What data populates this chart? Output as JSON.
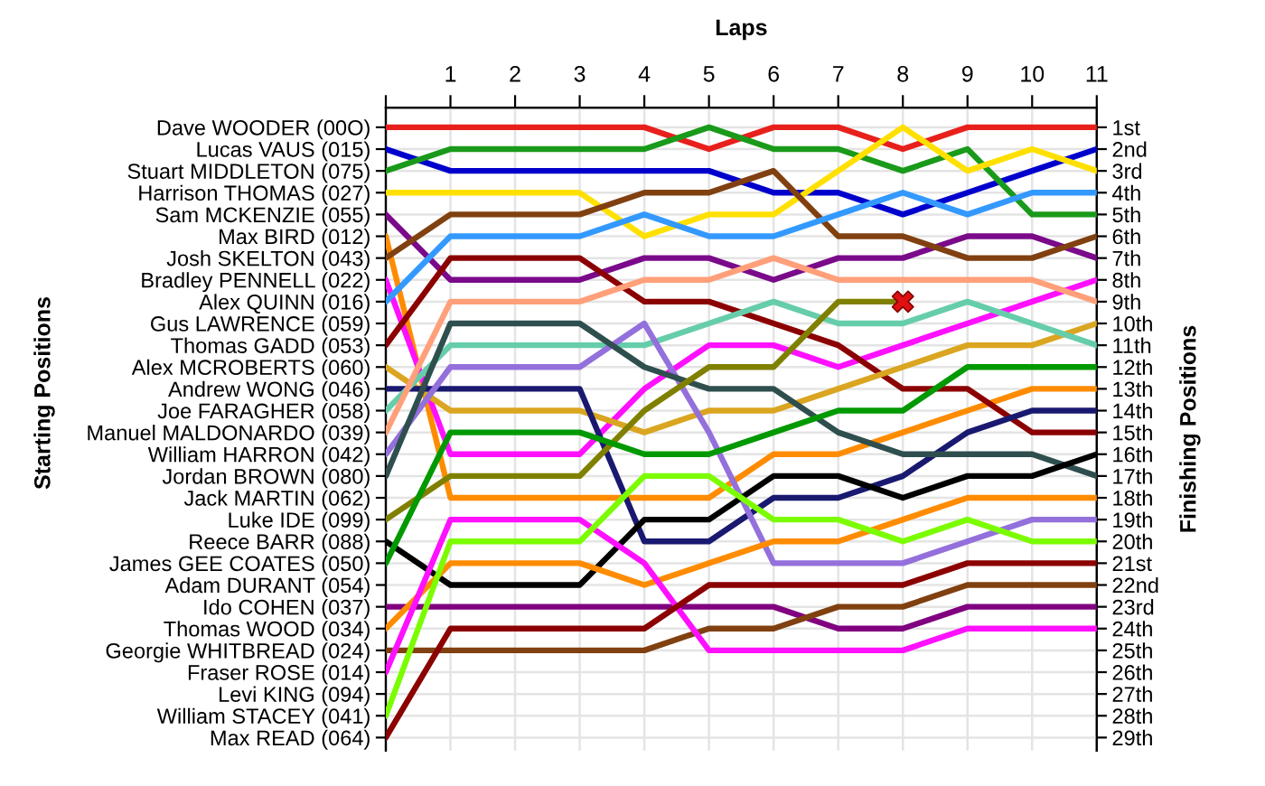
{
  "chart_data": {
    "type": "line",
    "xlabel": "Laps",
    "ylabel": "Finishing Positions",
    "annotations": [
      "Starting Positions"
    ],
    "x": [
      0,
      1,
      2,
      3,
      4,
      5,
      6,
      7,
      8,
      9,
      10,
      11
    ],
    "xlim": [
      0,
      11
    ],
    "xticks": [
      {
        "value": 0,
        "label": null
      },
      1,
      2,
      3,
      4,
      5,
      6,
      7,
      8,
      9,
      10,
      11
    ],
    "y_categories": [
      "Dave WOODER (00O)",
      "Lucas VAUS (015)",
      "Stuart MIDDLETON (075)",
      "Harrison THOMAS (027)",
      "Sam MCKENZIE (055)",
      "Max BIRD (012)",
      "Josh SKELTON (043)",
      "Bradley PENNELL (022)",
      "Alex QUINN (016)",
      "Gus LAWRENCE (059)",
      "Thomas GADD (053)",
      "Alex MCROBERTS (060)",
      "Andrew WONG (046)",
      "Joe FARAGHER (058)",
      "Manuel MALDONARDO (039)",
      "William HARRON (042)",
      "Jordan BROWN (080)",
      "Jack MARTIN (062)",
      "Luke IDE (099)",
      "Reece BARR (088)",
      "James GEE COATES (050)",
      "Adam DURANT (054)",
      "Ido COHEN (037)",
      "Thomas WOOD (034)",
      "Georgie WHITBREAD (024)",
      "Fraser ROSE (014)",
      "Levi KING (094)",
      "William STACEY (041)",
      "Max READ (064)"
    ],
    "ylim": [
      29.6,
      0.1
    ],
    "yticks": [
      {
        "value": 1,
        "label": "1st"
      },
      {
        "value": 2,
        "label": "2nd"
      },
      {
        "value": 3,
        "label": "3rd"
      },
      {
        "value": 4,
        "label": "4th"
      },
      {
        "value": 5,
        "label": "5th"
      },
      {
        "value": 6,
        "label": "6th"
      },
      {
        "value": 7,
        "label": "7th"
      },
      {
        "value": 8,
        "label": "8th"
      },
      {
        "value": 9,
        "label": "9th"
      },
      {
        "value": 10,
        "label": "10th"
      },
      {
        "value": 11,
        "label": "11th"
      },
      {
        "value": 12,
        "label": "12th"
      },
      {
        "value": 13,
        "label": "13th"
      },
      {
        "value": 14,
        "label": "14th"
      },
      {
        "value": 15,
        "label": "15th"
      },
      {
        "value": 16,
        "label": "16th"
      },
      {
        "value": 17,
        "label": "17th"
      },
      {
        "value": 18,
        "label": "18th"
      },
      {
        "value": 19,
        "label": "19th"
      },
      {
        "value": 20,
        "label": "20th"
      },
      {
        "value": 21,
        "label": "21st"
      },
      {
        "value": 22,
        "label": "22nd"
      },
      {
        "value": 23,
        "label": "23rd"
      },
      {
        "value": 24,
        "label": "24th"
      },
      {
        "value": 25,
        "label": "25th"
      },
      {
        "value": 26,
        "label": "26th"
      },
      {
        "value": 27,
        "label": "27th"
      },
      {
        "value": 28,
        "label": "28th"
      },
      {
        "value": 29,
        "label": "29th"
      }
    ],
    "grid": true,
    "legend": false,
    "series": [
      {
        "color": "#e8201c",
        "values": [
          1,
          1,
          1,
          1,
          1,
          2,
          1,
          1,
          2,
          1,
          1,
          1
        ]
      },
      {
        "color": "#0000cc",
        "values": [
          2,
          3,
          3,
          3,
          3,
          3,
          4,
          4,
          5,
          4,
          3,
          2
        ]
      },
      {
        "color": "#1a9a1a",
        "values": [
          3,
          2,
          2,
          2,
          2,
          1,
          2,
          2,
          3,
          2,
          5,
          5
        ]
      },
      {
        "color": "#ffe000",
        "values": [
          4,
          4,
          4,
          4,
          6,
          5,
          5,
          3,
          1,
          3,
          2,
          3
        ]
      },
      {
        "color": "#7a0a8a",
        "values": [
          5,
          8,
          8,
          8,
          7,
          7,
          8,
          7,
          7,
          6,
          6,
          7
        ]
      },
      {
        "color": "#ff8c00",
        "values": [
          6,
          18,
          18,
          18,
          18,
          18,
          16,
          16,
          15,
          14,
          13,
          13
        ]
      },
      {
        "color": "#804010",
        "values": [
          7,
          5,
          5,
          5,
          4,
          4,
          3,
          6,
          6,
          7,
          7,
          6
        ]
      },
      {
        "color": "#ff10ff",
        "values": [
          8,
          16,
          16,
          16,
          13,
          11,
          11,
          12,
          11,
          10,
          9,
          8
        ]
      },
      {
        "color": "#3399ff",
        "values": [
          9,
          6,
          6,
          6,
          5,
          6,
          6,
          5,
          4,
          5,
          4,
          4
        ]
      },
      {
        "color": "#8b0000",
        "values": [
          11,
          7,
          7,
          7,
          9,
          9,
          10,
          11,
          13,
          13,
          15,
          15
        ]
      },
      {
        "color": "#daa520",
        "values": [
          12,
          14,
          14,
          14,
          15,
          14,
          14,
          13,
          12,
          11,
          11,
          10
        ]
      },
      {
        "color": "#191970",
        "values": [
          13,
          13,
          13,
          13,
          20,
          20,
          18,
          18,
          17,
          15,
          14,
          14
        ]
      },
      {
        "color": "#66cdaa",
        "values": [
          14,
          11,
          11,
          11,
          11,
          10,
          9,
          10,
          10,
          9,
          10,
          11
        ]
      },
      {
        "color": "#ffa07a",
        "values": [
          15,
          9,
          9,
          9,
          8,
          8,
          7,
          8,
          8,
          8,
          8,
          9
        ]
      },
      {
        "color": "#9370db",
        "values": [
          16,
          12,
          12,
          12,
          10,
          15,
          21,
          21,
          21,
          20,
          19,
          19
        ]
      },
      {
        "color": "#2f4f4f",
        "values": [
          17,
          10,
          10,
          10,
          12,
          13,
          13,
          15,
          16,
          16,
          16,
          17
        ]
      },
      {
        "color": "#808000",
        "values": [
          19,
          17,
          17,
          17,
          14,
          12,
          12,
          9,
          9,
          null,
          null,
          null
        ]
      },
      {
        "color": "#000000",
        "values": [
          20,
          22,
          22,
          22,
          19,
          19,
          17,
          17,
          18,
          17,
          17,
          16
        ]
      },
      {
        "color": "#009900",
        "values": [
          21,
          15,
          15,
          15,
          16,
          16,
          15,
          14,
          14,
          12,
          12,
          12
        ]
      },
      {
        "color": "#800080",
        "values": [
          23,
          23,
          23,
          23,
          23,
          23,
          23,
          24,
          24,
          23,
          23,
          23
        ]
      },
      {
        "color": "#ff8c00",
        "values": [
          24,
          21,
          21,
          21,
          22,
          21,
          20,
          20,
          19,
          18,
          18,
          18
        ]
      },
      {
        "color": "#804010",
        "values": [
          25,
          25,
          25,
          25,
          25,
          24,
          24,
          23,
          23,
          22,
          22,
          22
        ]
      },
      {
        "color": "#ff10ff",
        "values": [
          26,
          19,
          19,
          19,
          21,
          25,
          25,
          25,
          25,
          24,
          24,
          24
        ]
      },
      {
        "color": "#7cfc00",
        "values": [
          28,
          20,
          20,
          20,
          17,
          17,
          19,
          19,
          20,
          19,
          20,
          20
        ]
      },
      {
        "color": "#8b0000",
        "values": [
          29,
          24,
          24,
          24,
          24,
          22,
          22,
          22,
          22,
          21,
          21,
          21
        ]
      },
      {
        "type": "scatter",
        "marker": "cross",
        "color": "#e01010",
        "x": [
          8
        ],
        "values": [
          9
        ]
      }
    ]
  }
}
